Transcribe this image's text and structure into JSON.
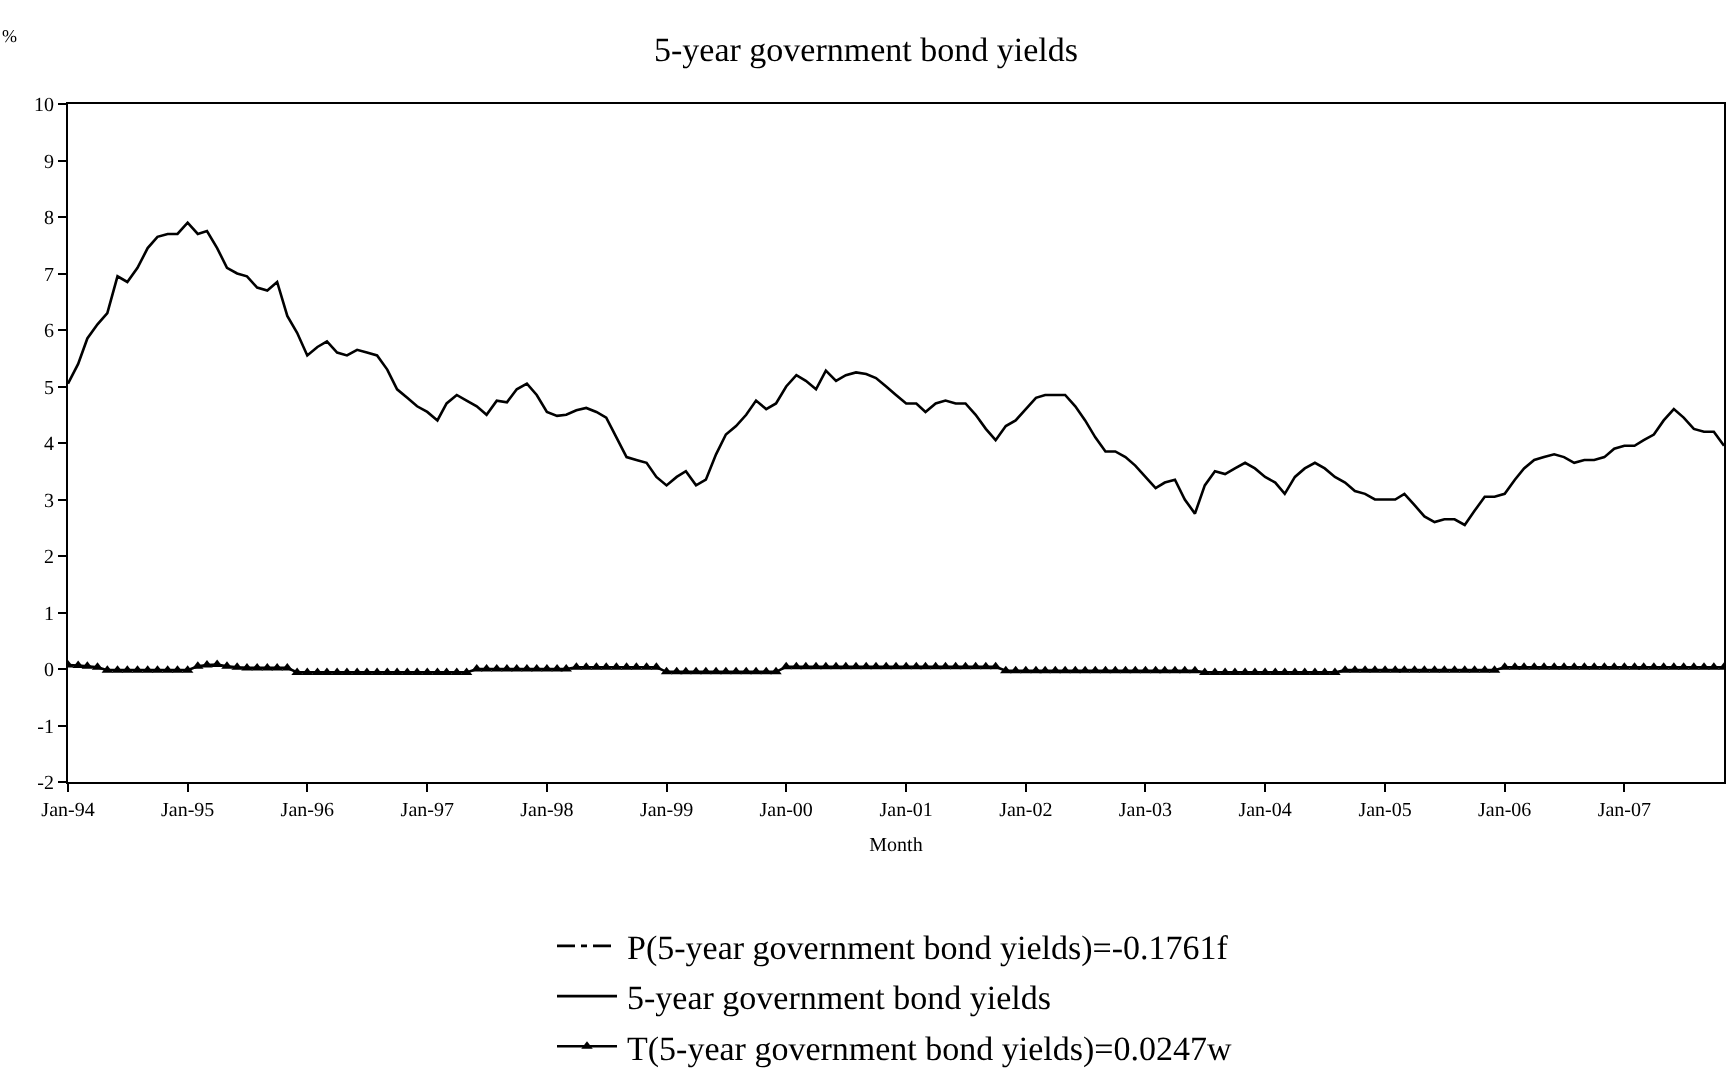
{
  "chart_data": {
    "type": "line",
    "title": "5-year government bond yields",
    "xlabel": "Month",
    "ylabel": "%",
    "x": [
      "1994-01",
      "1994-02",
      "1994-03",
      "1994-04",
      "1994-05",
      "1994-06",
      "1994-07",
      "1994-08",
      "1994-09",
      "1994-10",
      "1994-11",
      "1994-12",
      "1995-01",
      "1995-02",
      "1995-03",
      "1995-04",
      "1995-05",
      "1995-06",
      "1995-07",
      "1995-08",
      "1995-09",
      "1995-10",
      "1995-11",
      "1995-12",
      "1996-01",
      "1996-02",
      "1996-03",
      "1996-04",
      "1996-05",
      "1996-06",
      "1996-07",
      "1996-08",
      "1996-09",
      "1996-10",
      "1996-11",
      "1996-12",
      "1997-01",
      "1997-02",
      "1997-03",
      "1997-04",
      "1997-05",
      "1997-06",
      "1997-07",
      "1997-08",
      "1997-09",
      "1997-10",
      "1997-11",
      "1997-12",
      "1998-01",
      "1998-02",
      "1998-03",
      "1998-04",
      "1998-05",
      "1998-06",
      "1998-07",
      "1998-08",
      "1998-09",
      "1998-10",
      "1998-11",
      "1998-12",
      "1999-01",
      "1999-02",
      "1999-03",
      "1999-04",
      "1999-05",
      "1999-06",
      "1999-07",
      "1999-08",
      "1999-09",
      "1999-10",
      "1999-11",
      "1999-12",
      "2000-01",
      "2000-02",
      "2000-03",
      "2000-04",
      "2000-05",
      "2000-06",
      "2000-07",
      "2000-08",
      "2000-09",
      "2000-10",
      "2000-11",
      "2000-12",
      "2001-01",
      "2001-02",
      "2001-03",
      "2001-04",
      "2001-05",
      "2001-06",
      "2001-07",
      "2001-08",
      "2001-09",
      "2001-10",
      "2001-11",
      "2001-12",
      "2002-01",
      "2002-02",
      "2002-03",
      "2002-04",
      "2002-05",
      "2002-06",
      "2002-07",
      "2002-08",
      "2002-09",
      "2002-10",
      "2002-11",
      "2002-12",
      "2003-01",
      "2003-02",
      "2003-03",
      "2003-04",
      "2003-05",
      "2003-06",
      "2003-07",
      "2003-08",
      "2003-09",
      "2003-10",
      "2003-11",
      "2003-12",
      "2004-01",
      "2004-02",
      "2004-03",
      "2004-04",
      "2004-05",
      "2004-06",
      "2004-07",
      "2004-08",
      "2004-09",
      "2004-10",
      "2004-11",
      "2004-12",
      "2005-01",
      "2005-02",
      "2005-03",
      "2005-04",
      "2005-05",
      "2005-06",
      "2005-07",
      "2005-08",
      "2005-09",
      "2005-10",
      "2005-11",
      "2005-12",
      "2006-01",
      "2006-02",
      "2006-03",
      "2006-04",
      "2006-05",
      "2006-06",
      "2006-07",
      "2006-08",
      "2006-09",
      "2006-10",
      "2006-11",
      "2006-12",
      "2007-01",
      "2007-02",
      "2007-03",
      "2007-04",
      "2007-05",
      "2007-06",
      "2007-07",
      "2007-08",
      "2007-09",
      "2007-10",
      "2007-11"
    ],
    "series": [
      {
        "name": "P(5-year government bond yields)=-0.1761f",
        "color": "#000000",
        "line_style": "dashdot",
        "marker": "none",
        "values": [
          null,
          null,
          null,
          null,
          null,
          null,
          null,
          null,
          null,
          null,
          null,
          null,
          null,
          null,
          null,
          null,
          null,
          null,
          null,
          null,
          null,
          null,
          null,
          null,
          null,
          null,
          null,
          null,
          null,
          null,
          null,
          null,
          null,
          null,
          null,
          null,
          null,
          null,
          null,
          null,
          null,
          null,
          null,
          null,
          null,
          null,
          null,
          null,
          null,
          null,
          null,
          null,
          null,
          null,
          null,
          null,
          null,
          null,
          null,
          null,
          null,
          null,
          null,
          null,
          null,
          null,
          null,
          null,
          null,
          null,
          null,
          null,
          null,
          null,
          null,
          null,
          null,
          null,
          null,
          null,
          null,
          null,
          null,
          null,
          null,
          null,
          null,
          null,
          null,
          null,
          null,
          null,
          null,
          null,
          null,
          null,
          null,
          null,
          null,
          null,
          null,
          null,
          null,
          null,
          null,
          null,
          null,
          null,
          null,
          null,
          null,
          null,
          null,
          null,
          null,
          null,
          null,
          null,
          null,
          null,
          null,
          null,
          null,
          null,
          null,
          null,
          null,
          null,
          null,
          null,
          null,
          null,
          null,
          null,
          null,
          null,
          null,
          null,
          null,
          null,
          null,
          null,
          null,
          null,
          null,
          null,
          null,
          null,
          null,
          null,
          null,
          null,
          null,
          null,
          null,
          null,
          null,
          null,
          null,
          null,
          null,
          null,
          null,
          null,
          null,
          null,
          null
        ]
      },
      {
        "name": "5-year government bond yields",
        "color": "#000000",
        "line_style": "solid",
        "marker": "none",
        "values": [
          5.05,
          5.4,
          5.85,
          6.1,
          6.3,
          6.95,
          6.85,
          7.1,
          7.45,
          7.65,
          7.7,
          7.7,
          7.9,
          7.7,
          7.75,
          7.45,
          7.1,
          7.0,
          6.95,
          6.75,
          6.7,
          6.85,
          6.25,
          5.95,
          5.55,
          5.7,
          5.8,
          5.6,
          5.55,
          5.65,
          5.6,
          5.55,
          5.3,
          4.95,
          4.8,
          4.65,
          4.55,
          4.4,
          4.7,
          4.85,
          4.75,
          4.65,
          4.5,
          4.75,
          4.72,
          4.95,
          5.05,
          4.85,
          4.55,
          4.48,
          4.5,
          4.58,
          4.62,
          4.55,
          4.45,
          4.1,
          3.75,
          3.7,
          3.65,
          3.4,
          3.25,
          3.4,
          3.5,
          3.25,
          3.35,
          3.8,
          4.15,
          4.3,
          4.5,
          4.75,
          4.6,
          4.7,
          5.0,
          5.2,
          5.1,
          4.95,
          5.28,
          5.1,
          5.2,
          5.25,
          5.22,
          5.15,
          5.0,
          4.85,
          4.7,
          4.7,
          4.55,
          4.7,
          4.75,
          4.7,
          4.7,
          4.5,
          4.25,
          4.05,
          4.3,
          4.4,
          4.6,
          4.8,
          4.85,
          4.85,
          4.85,
          4.65,
          4.4,
          4.1,
          3.85,
          3.85,
          3.75,
          3.6,
          3.4,
          3.2,
          3.3,
          3.35,
          3.0,
          2.75,
          3.25,
          3.5,
          3.45,
          3.55,
          3.65,
          3.55,
          3.4,
          3.3,
          3.1,
          3.4,
          3.55,
          3.65,
          3.55,
          3.4,
          3.3,
          3.15,
          3.1,
          3.0,
          3.0,
          3.0,
          3.1,
          2.9,
          2.7,
          2.6,
          2.65,
          2.65,
          2.55,
          2.8,
          3.05,
          3.05,
          3.1,
          3.35,
          3.55,
          3.7,
          3.75,
          3.8,
          3.75,
          3.65,
          3.7,
          3.7,
          3.75,
          3.9,
          3.95,
          3.95,
          4.05,
          4.15,
          4.4,
          4.6,
          4.45,
          4.25,
          4.2,
          4.2,
          3.95
        ]
      },
      {
        "name": "T(5-year government bond yields)=0.0247w",
        "color": "#000000",
        "line_style": "solid",
        "marker": "triangle",
        "values": [
          0.07,
          0.06,
          0.05,
          0.03,
          -0.02,
          -0.02,
          -0.02,
          -0.02,
          -0.02,
          -0.02,
          -0.02,
          -0.02,
          -0.02,
          0.05,
          0.07,
          0.08,
          0.05,
          0.03,
          0.02,
          0.02,
          0.02,
          0.02,
          0.02,
          -0.06,
          -0.06,
          -0.06,
          -0.06,
          -0.06,
          -0.06,
          -0.06,
          -0.06,
          -0.06,
          -0.06,
          -0.06,
          -0.06,
          -0.06,
          -0.06,
          -0.06,
          -0.06,
          -0.06,
          -0.06,
          0.0,
          0.0,
          0.0,
          0.0,
          0.0,
          0.0,
          0.0,
          0.0,
          0.0,
          0.0,
          0.03,
          0.03,
          0.03,
          0.03,
          0.03,
          0.03,
          0.03,
          0.03,
          0.03,
          -0.05,
          -0.05,
          -0.05,
          -0.05,
          -0.05,
          -0.05,
          -0.05,
          -0.05,
          -0.05,
          -0.05,
          -0.05,
          -0.05,
          0.04,
          0.04,
          0.04,
          0.04,
          0.04,
          0.04,
          0.04,
          0.04,
          0.04,
          0.04,
          0.04,
          0.04,
          0.04,
          0.04,
          0.04,
          0.04,
          0.04,
          0.04,
          0.04,
          0.04,
          0.04,
          0.04,
          -0.03,
          -0.03,
          -0.03,
          -0.03,
          -0.03,
          -0.03,
          -0.03,
          -0.03,
          -0.03,
          -0.03,
          -0.03,
          -0.03,
          -0.03,
          -0.03,
          -0.03,
          -0.03,
          -0.03,
          -0.03,
          -0.03,
          -0.03,
          -0.06,
          -0.06,
          -0.06,
          -0.06,
          -0.06,
          -0.06,
          -0.06,
          -0.06,
          -0.06,
          -0.06,
          -0.06,
          -0.06,
          -0.06,
          -0.06,
          -0.02,
          -0.02,
          -0.02,
          -0.02,
          -0.02,
          -0.02,
          -0.02,
          -0.02,
          -0.02,
          -0.02,
          -0.02,
          -0.02,
          -0.02,
          -0.02,
          -0.02,
          -0.02,
          0.03,
          0.03,
          0.03,
          0.03,
          0.03,
          0.03,
          0.03,
          0.03,
          0.03,
          0.03,
          0.03,
          0.03,
          0.03,
          0.03,
          0.03,
          0.03,
          0.03,
          0.03,
          0.03,
          0.03,
          0.03,
          0.03,
          0.03
        ]
      }
    ],
    "xlim": [
      "1994-01",
      "2007-11"
    ],
    "xticks": [
      {
        "value": "1994-01",
        "label": "Jan-94"
      },
      {
        "value": "1995-01",
        "label": "Jan-95"
      },
      {
        "value": "1996-01",
        "label": "Jan-96"
      },
      {
        "value": "1997-01",
        "label": "Jan-97"
      },
      {
        "value": "1998-01",
        "label": "Jan-98"
      },
      {
        "value": "1999-01",
        "label": "Jan-99"
      },
      {
        "value": "2000-01",
        "label": "Jan-00"
      },
      {
        "value": "2001-01",
        "label": "Jan-01"
      },
      {
        "value": "2002-01",
        "label": "Jan-02"
      },
      {
        "value": "2003-01",
        "label": "Jan-03"
      },
      {
        "value": "2004-01",
        "label": "Jan-04"
      },
      {
        "value": "2005-01",
        "label": "Jan-05"
      },
      {
        "value": "2006-01",
        "label": "Jan-06"
      },
      {
        "value": "2007-01",
        "label": "Jan-07"
      }
    ],
    "ylim": [
      -2,
      10
    ],
    "yticks": [
      -2,
      -1,
      0,
      1,
      2,
      3,
      4,
      5,
      6,
      7,
      8,
      9,
      10
    ],
    "grid": false,
    "legend": "bottom"
  }
}
